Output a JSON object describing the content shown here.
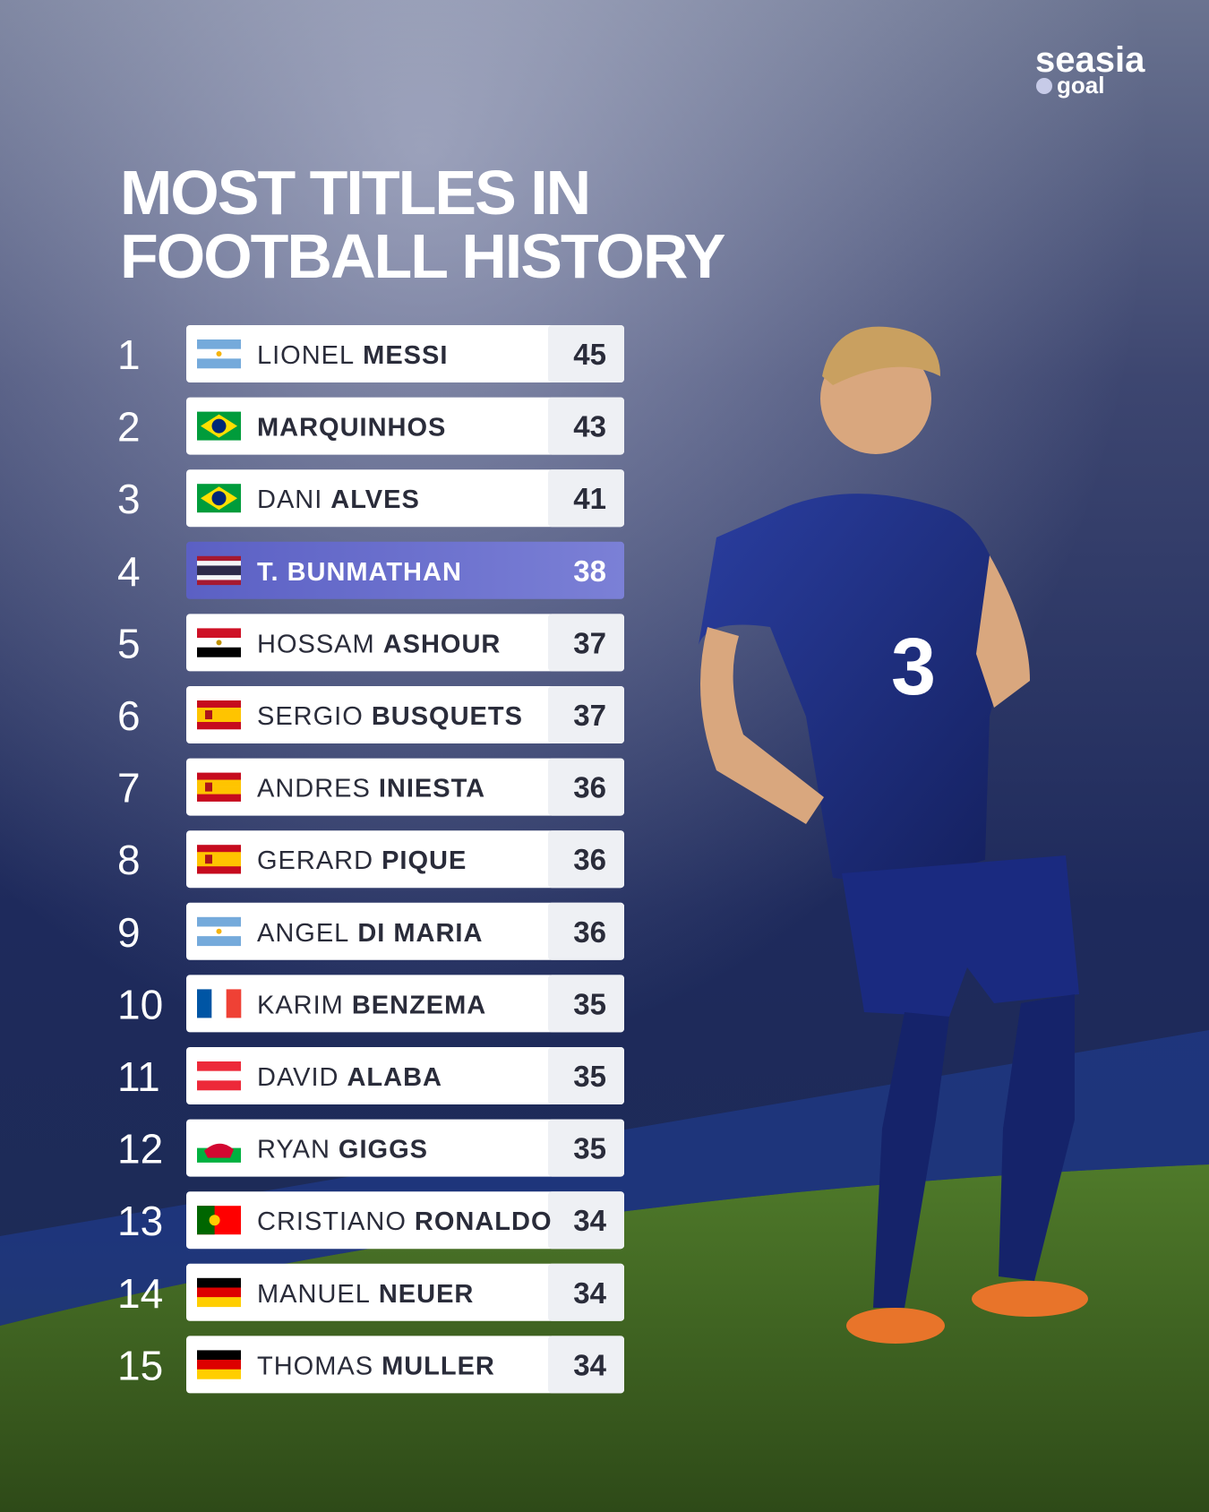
{
  "brand": {
    "name": "seasia",
    "sub": "goal"
  },
  "title": {
    "line1": "MOST TITLES IN",
    "line2": "FOOTBALL HISTORY"
  },
  "rows": [
    {
      "rank": 1,
      "first": "LIONEL",
      "last": "MESSI",
      "titles": 45
    },
    {
      "rank": 2,
      "first": "",
      "last": "MARQUINHOS",
      "titles": 43
    },
    {
      "rank": 3,
      "first": "DANI",
      "last": "ALVES",
      "titles": 41
    },
    {
      "rank": 4,
      "first": "T.",
      "last": "BUNMATHAN",
      "titles": 38
    },
    {
      "rank": 5,
      "first": "HOSSAM",
      "last": "ASHOUR",
      "titles": 37
    },
    {
      "rank": 6,
      "first": "SERGIO",
      "last": "BUSQUETS",
      "titles": 37
    },
    {
      "rank": 7,
      "first": "ANDRES",
      "last": "INIESTA",
      "titles": 36
    },
    {
      "rank": 8,
      "first": "GERARD",
      "last": "PIQUE",
      "titles": 36
    },
    {
      "rank": 9,
      "first": "ANGEL",
      "last": "DI MARIA",
      "titles": 36
    },
    {
      "rank": 10,
      "first": "KARIM",
      "last": "BENZEMA",
      "titles": 35
    },
    {
      "rank": 11,
      "first": "DAVID",
      "last": "ALABA",
      "titles": 35
    },
    {
      "rank": 12,
      "first": "RYAN",
      "last": "GIGGS",
      "titles": 35
    },
    {
      "rank": 13,
      "first": "CRISTIANO",
      "last": "RONALDO",
      "titles": 34
    },
    {
      "rank": 14,
      "first": "MANUEL",
      "last": "NEUER",
      "titles": 34
    },
    {
      "rank": 15,
      "first": "THOMAS",
      "last": "MULLER",
      "titles": 34
    }
  ]
}
